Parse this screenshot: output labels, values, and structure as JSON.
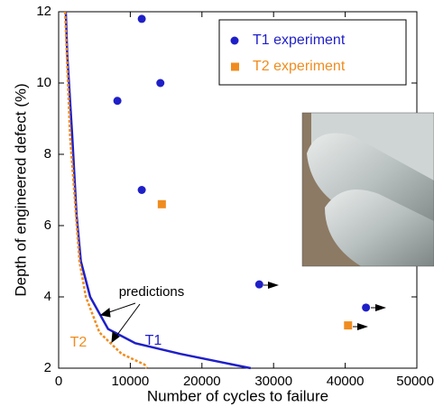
{
  "chart_data": {
    "type": "scatter",
    "x_label": "Number of cycles to failure",
    "y_label": "Depth of engineered defect (%)",
    "xlim": [
      0,
      50000
    ],
    "ylim": [
      2,
      12
    ],
    "xticks": [
      0,
      10000,
      20000,
      30000,
      40000,
      50000
    ],
    "yticks": [
      2,
      4,
      6,
      8,
      10,
      12
    ],
    "legend": "top-right",
    "series": [
      {
        "name": "T1 experiment",
        "color": "#1f1fc8",
        "marker": "circle",
        "x": [
          11600,
          8200,
          14200,
          11600,
          28000,
          42900
        ],
        "values": [
          11.8,
          9.5,
          10.0,
          7.0,
          4.35,
          3.7
        ]
      },
      {
        "name": "T2 experiment",
        "color": "#f08c1e",
        "marker": "square",
        "x": [
          14400,
          40400
        ],
        "values": [
          6.6,
          3.2
        ]
      }
    ],
    "lines": [
      {
        "name": "T1",
        "color": "#1f1fc8",
        "dashed": false,
        "x": [
          1000,
          1200,
          1900,
          2500,
          3100,
          4400,
          6900,
          10700,
          17000,
          26800
        ],
        "values": [
          12,
          10.8,
          8.5,
          6.3,
          5.0,
          4.0,
          3.1,
          2.7,
          2.4,
          2.0
        ]
      },
      {
        "name": "T2",
        "color": "#f08c1e",
        "dashed": true,
        "x": [
          900,
          1600,
          2900,
          3800,
          5700,
          8800,
          12000,
          12300
        ],
        "values": [
          12,
          8.5,
          5.0,
          4.0,
          3.0,
          2.4,
          2.1,
          2.0
        ]
      }
    ],
    "annotation": "predictions"
  }
}
